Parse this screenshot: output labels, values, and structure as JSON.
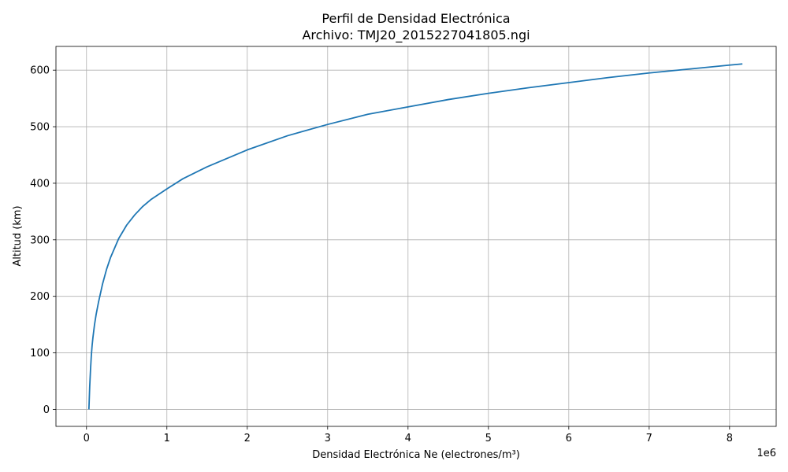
{
  "chart_data": {
    "type": "line",
    "title": "Perfil de Densidad Electrónica",
    "subtitle": "Archivo: TMJ20_2015227041805.ngi",
    "xlabel": "Densidad Electrónica Ne (electrones/m³)",
    "ylabel": "Altitud (km)",
    "x_offset_label": "1e6",
    "x_scale": 1000000,
    "xlim": [
      -380000,
      8580000
    ],
    "ylim": [
      -30,
      642
    ],
    "x_ticks": [
      0,
      1000000,
      2000000,
      3000000,
      4000000,
      5000000,
      6000000,
      7000000,
      8000000
    ],
    "x_tick_labels": [
      "0",
      "1",
      "2",
      "3",
      "4",
      "5",
      "6",
      "7",
      "8"
    ],
    "y_ticks": [
      0,
      100,
      200,
      300,
      400,
      500,
      600
    ],
    "y_tick_labels": [
      "0",
      "100",
      "200",
      "300",
      "400",
      "500",
      "600"
    ],
    "grid": true,
    "series": [
      {
        "color": "#1f77b4",
        "x": [
          30000,
          40000,
          50000,
          60000,
          70000,
          80000,
          100000,
          120000,
          150000,
          200000,
          250000,
          300000,
          400000,
          500000,
          600000,
          700000,
          800000,
          1000000,
          1200000,
          1500000,
          2000000,
          2500000,
          3000000,
          3500000,
          4000000,
          4500000,
          5000000,
          5500000,
          6000000,
          6500000,
          7000000,
          7500000,
          8000000,
          8160000
        ],
        "y": [
          0,
          40,
          70,
          95,
          113,
          127,
          150,
          168,
          190,
          222,
          248,
          269,
          302,
          326,
          344,
          359,
          371,
          390,
          408,
          429,
          459,
          484,
          504,
          522,
          535,
          548,
          559,
          569,
          578,
          587,
          595,
          602,
          609,
          611
        ]
      }
    ]
  }
}
